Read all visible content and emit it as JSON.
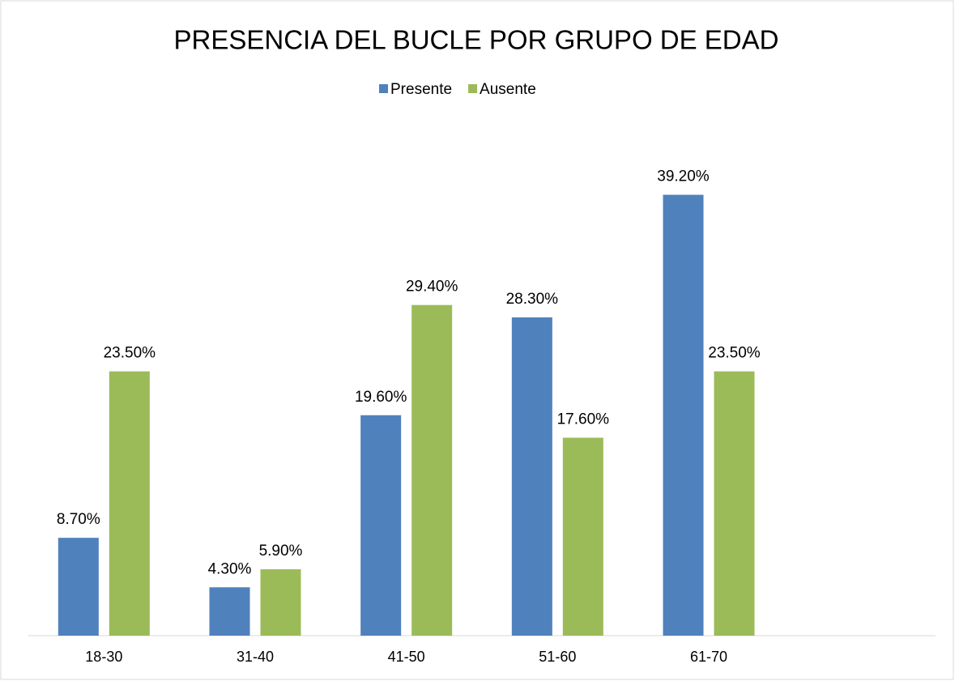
{
  "chart_data": {
    "type": "bar",
    "title": "PRESENCIA DEL BUCLE POR GRUPO DE EDAD",
    "categories": [
      "18-30",
      "31-40",
      "41-50",
      "51-60",
      "61-70",
      null
    ],
    "series": [
      {
        "name": "Presente",
        "color": "#4f81bd",
        "values": [
          8.7,
          4.3,
          19.6,
          28.3,
          39.2,
          null
        ],
        "value_labels": [
          "8.70%",
          "4.30%",
          "19.60%",
          "28.30%",
          "39.20%",
          null
        ]
      },
      {
        "name": "Ausente",
        "color": "#9bbb59",
        "values": [
          23.5,
          5.9,
          29.4,
          17.6,
          23.5,
          null
        ],
        "value_labels": [
          "23.50%",
          "5.90%",
          "29.40%",
          "17.60%",
          "23.50%",
          null
        ]
      }
    ],
    "ylim": [
      0,
      45
    ],
    "legend": "top"
  }
}
